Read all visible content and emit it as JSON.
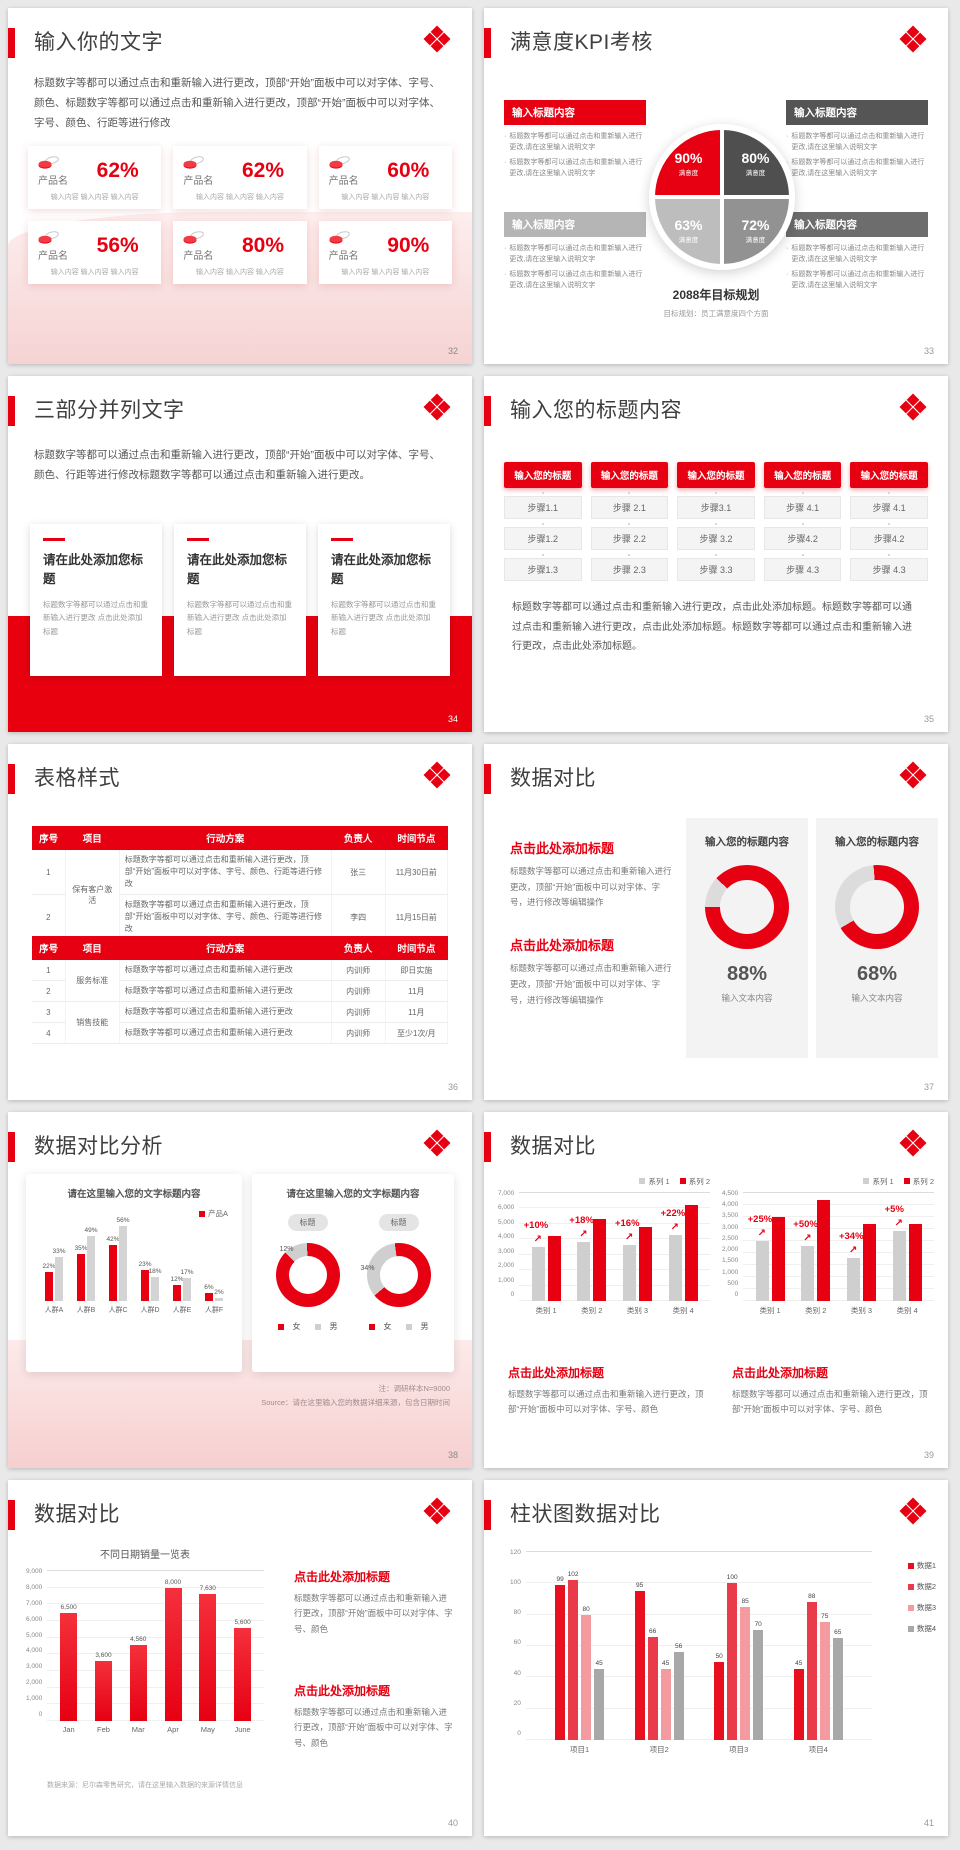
{
  "accent": "#e60012",
  "slides": {
    "s32": {
      "title": "输入你的文字",
      "page": "32",
      "intro": "标题数字等都可以通过点击和重新输入进行更改，顶部“开始”面板中可以对字体、字号、颜色、标题数字等都可以通过点击和重新输入进行更改，顶部“开始”面板中可以对字体、字号、颜色、行距等进行修改",
      "cards": [
        {
          "name": "产品名",
          "value": "62%",
          "desc": "输入内容 输入内容 输入内容"
        },
        {
          "name": "产品名",
          "value": "62%",
          "desc": "输入内容 输入内容 输入内容"
        },
        {
          "name": "产品名",
          "value": "60%",
          "desc": "输入内容 输入内容 输入内容"
        },
        {
          "name": "产品名",
          "value": "56%",
          "desc": "输入内容 输入内容 输入内容"
        },
        {
          "name": "产品名",
          "value": "80%",
          "desc": "输入内容 输入内容 输入内容"
        },
        {
          "name": "产品名",
          "value": "90%",
          "desc": "输入内容 输入内容 输入内容"
        }
      ]
    },
    "s33": {
      "title": "满意度KPI考核",
      "page": "33",
      "boxes": [
        {
          "heading": "输入标题内容",
          "color": "#e60012",
          "bullets": [
            "标题数字等都可以通过点击和重新输入进行更改,请在这里输入说明文字",
            "标题数字等都可以通过点击和重新输入进行更改,请在这里输入说明文字"
          ]
        },
        {
          "heading": "输入标题内容",
          "color": "#555555",
          "bullets": [
            "标题数字等都可以通过点击和重新输入进行更改,请在这里输入说明文字",
            "标题数字等都可以通过点击和重新输入进行更改,请在这里输入说明文字"
          ]
        },
        {
          "heading": "输入标题内容",
          "color": "#b5b5b5",
          "bullets": [
            "标题数字等都可以通过点击和重新输入进行更改,请在这里输入说明文字",
            "标题数字等都可以通过点击和重新输入进行更改,请在这里输入说明文字"
          ]
        },
        {
          "heading": "输入标题内容",
          "color": "#6d6d6d",
          "bullets": [
            "标题数字等都可以通过点击和重新输入进行更改,请在这里输入说明文字",
            "标题数字等都可以通过点击和重新输入进行更改,请在这里输入说明文字"
          ]
        }
      ],
      "pie": {
        "tl": {
          "value": "90%",
          "label": "满意度",
          "color": "#e60012"
        },
        "tr": {
          "value": "80%",
          "label": "满意度",
          "color": "#4f4f4f"
        },
        "bl": {
          "value": "63%",
          "label": "满意度",
          "color": "#bdbdbd"
        },
        "br": {
          "value": "72%",
          "label": "满意度",
          "color": "#929292"
        }
      },
      "center_title": "2088年目标规划",
      "center_sub": "目标规划：员工满意度四个方面"
    },
    "s34": {
      "title": "三部分并列文字",
      "page": "34",
      "intro": "标题数字等都可以通过点击和重新输入进行更改，顶部“开始”面板中可以对字体、字号、颜色、行距等进行修改标题数字等都可以通过点击和重新输入进行更改。",
      "cards": [
        {
          "heading": "请在此处添加您标题",
          "body": "标题数字等都可以通过点击和重新输入进行更改 点击此处添加标题"
        },
        {
          "heading": "请在此处添加您标题",
          "body": "标题数字等都可以通过点击和重新输入进行更改 点击此处添加标题"
        },
        {
          "heading": "请在此处添加您标题",
          "body": "标题数字等都可以通过点击和重新输入进行更改 点击此处添加标题"
        }
      ]
    },
    "s35": {
      "title": "输入您的标题内容",
      "page": "35",
      "columns": [
        {
          "header": "输入您的标题",
          "steps": [
            "步骤1.1",
            "步骤1.2",
            "步骤1.3"
          ]
        },
        {
          "header": "输入您的标题",
          "steps": [
            "步骤 2.1",
            "步骤 2.2",
            "步骤 2.3"
          ]
        },
        {
          "header": "输入您的标题",
          "steps": [
            "步骤3.1",
            "步骤 3.2",
            "步骤 3.3"
          ]
        },
        {
          "header": "输入您的标题",
          "steps": [
            "步骤 4.1",
            "步骤4.2",
            "步骤 4.3"
          ]
        },
        {
          "header": "输入您的标题",
          "steps": [
            "步骤 4.1",
            "步骤4.2",
            "步骤 4.3"
          ]
        }
      ],
      "body": "标题数字等都可以通过点击和重新输入进行更改，点击此处添加标题。标题数字等都可以通过点击和重新输入进行更改，点击此处添加标题。标题数字等都可以通过点击和重新输入进行更改，点击此处添加标题。"
    },
    "s36": {
      "title": "表格样式",
      "page": "36",
      "headers": [
        "序号",
        "项目",
        "行动方案",
        "负责人",
        "时间节点"
      ],
      "table1_rows": [
        {
          "no": "1",
          "project": "保有客户激活",
          "action": "标题数字等都可以通过点击和重新输入进行更改，顶部“开始”面板中可以对字体、字号、颜色、行距等进行修改",
          "owner": "张三",
          "time": "11月30日前"
        },
        {
          "no": "2",
          "project": "",
          "action": "标题数字等都可以通过点击和重新输入进行更改，顶部“开始”面板中可以对字体、字号、颜色、行距等进行修改",
          "owner": "李四",
          "time": "11月15日前"
        }
      ],
      "table2_rows": [
        {
          "no": "1",
          "project": "服务标准",
          "action": "标题数字等都可以通过点击和重新输入进行更改",
          "owner": "内训师",
          "time": "即日实施"
        },
        {
          "no": "2",
          "project": "",
          "action": "标题数字等都可以通过点击和重新输入进行更改",
          "owner": "内训师",
          "time": "11月"
        },
        {
          "no": "3",
          "project": "销售技能",
          "action": "标题数字等都可以通过点击和重新输入进行更改",
          "owner": "内训师",
          "time": "11月"
        },
        {
          "no": "4",
          "project": "",
          "action": "标题数字等都可以通过点击和重新输入进行更改",
          "owner": "内训师",
          "time": "至少1次/月"
        }
      ]
    },
    "s37": {
      "title": "数据对比",
      "page": "37",
      "blocks": [
        {
          "heading": "点击此处添加标题",
          "body": "标题数字等都可以通过点击和重新输入进行更改，顶部“开始”面板中可以对字体、字号，进行修改等编辑操作"
        },
        {
          "heading": "点击此处添加标题",
          "body": "标题数字等都可以通过点击和重新输入进行更改，顶部“开始”面板中可以对字体、字号，进行修改等编辑操作"
        }
      ],
      "cards": [
        {
          "heading": "输入您的标题内容",
          "value": 88,
          "value_label": "88%",
          "label": "输入文本内容"
        },
        {
          "heading": "输入您的标题内容",
          "value": 68,
          "value_label": "68%",
          "label": "输入文本内容"
        }
      ]
    },
    "s38": {
      "title": "数据对比分析",
      "page": "38",
      "cards": [
        {
          "heading": "请在这里输入您的文字标题内容"
        },
        {
          "heading": "请在这里输入您的文字标题内容"
        }
      ],
      "legend_product": "产品A",
      "bar": {
        "type": "bar",
        "categories": [
          "人群A",
          "人群B",
          "人群C",
          "人群D",
          "人群E",
          "人群F"
        ],
        "red_values": [
          22,
          35,
          42,
          23,
          12,
          6
        ],
        "gray_values": [
          33,
          49,
          56,
          18,
          17,
          2
        ],
        "ymax": 60
      },
      "pills": [
        "标题",
        "标题"
      ],
      "donuts": [
        {
          "gray_pct": 12,
          "label": "12%"
        },
        {
          "gray_pct": 34,
          "label": "34%"
        }
      ],
      "genders": [
        "女",
        "男"
      ],
      "note1": "注：调研样本N=9000",
      "note2": "Source：请在这里输入您的数据详细来源，包含日期时间"
    },
    "s39": {
      "title": "数据对比",
      "page": "39",
      "legend": [
        "系列 1",
        "系列 2"
      ],
      "charts": [
        {
          "type": "bar",
          "categories": [
            "类别 1",
            "类别 2",
            "类别 3",
            "类别 4"
          ],
          "series1_gray": [
            3500,
            3800,
            3650,
            4250
          ],
          "series2_red": [
            4200,
            5300,
            4800,
            6200
          ],
          "growth": [
            "+10%",
            "+18%",
            "+16%",
            "+22%"
          ],
          "ymax": 7000,
          "ticks": [
            "7,000",
            "6,000",
            "5,000",
            "4,000",
            "3,000",
            "2,000",
            "1,000",
            "0"
          ]
        },
        {
          "type": "bar",
          "categories": [
            "类别 1",
            "类别 2",
            "类别 3",
            "类别 4"
          ],
          "series1_gray": [
            2500,
            2300,
            1800,
            2900
          ],
          "series2_red": [
            3500,
            4200,
            3200,
            3200
          ],
          "growth": [
            "+25%",
            "+50%",
            "+34%",
            "+5%"
          ],
          "ymax": 4500,
          "ticks": [
            "4,500",
            "4,000",
            "3,500",
            "3,000",
            "2,500",
            "2,000",
            "1,500",
            "1,000",
            "500",
            "0"
          ]
        }
      ],
      "blocks": [
        {
          "heading": "点击此处添加标题",
          "body": "标题数字等都可以通过点击和重新输入进行更改，顶部“开始”面板中可以对字体、字号、颜色"
        },
        {
          "heading": "点击此处添加标题",
          "body": "标题数字等都可以通过点击和重新输入进行更改，顶部“开始”面板中可以对字体、字号、颜色"
        }
      ]
    },
    "s40": {
      "title": "数据对比",
      "page": "40",
      "chart": {
        "type": "bar",
        "title": "不同日期销量一览表",
        "categories": [
          "Jan",
          "Feb",
          "Mar",
          "Apr",
          "May",
          "June"
        ],
        "values": [
          6500,
          3600,
          4560,
          8000,
          7630,
          5600
        ],
        "labels": [
          "6,500",
          "3,600",
          "4,560",
          "8,000",
          "7,630",
          "5,600"
        ],
        "ymax": 9000,
        "ticks": [
          "9,000",
          "8,000",
          "7,000",
          "6,000",
          "5,000",
          "4,000",
          "3,000",
          "2,000",
          "1,000",
          "0"
        ]
      },
      "note": "数据来源：尼尔森零售研究，请在这里输入数据的来源详情信息",
      "blocks": [
        {
          "heading": "点击此处添加标题",
          "body": "标题数字等都可以通过点击和重新输入进行更改，顶部“开始”面板中可以对字体、字号、颜色"
        },
        {
          "heading": "点击此处添加标题",
          "body": "标题数字等都可以通过点击和重新输入进行更改，顶部“开始”面板中可以对字体、字号、颜色"
        }
      ]
    },
    "s41": {
      "title": "柱状图数据对比",
      "page": "41",
      "chart": {
        "type": "bar",
        "categories": [
          "项目1",
          "项目2",
          "项目3",
          "项目4"
        ],
        "series": [
          {
            "name": "数据1",
            "color": "#e8101f",
            "values": [
              99,
              95,
              50,
              45
            ]
          },
          {
            "name": "数据2",
            "color": "#ea3b4b",
            "values": [
              102,
              66,
              100,
              88
            ]
          },
          {
            "name": "数据3",
            "color": "#f59ba0",
            "values": [
              80,
              45,
              85,
              75
            ]
          },
          {
            "name": "数据4",
            "color": "#a8a8a8",
            "values": [
              45,
              56,
              70,
              65
            ]
          }
        ],
        "ymax": 120,
        "ticks": [
          "120",
          "100",
          "80",
          "60",
          "40",
          "20",
          "0"
        ]
      }
    }
  }
}
